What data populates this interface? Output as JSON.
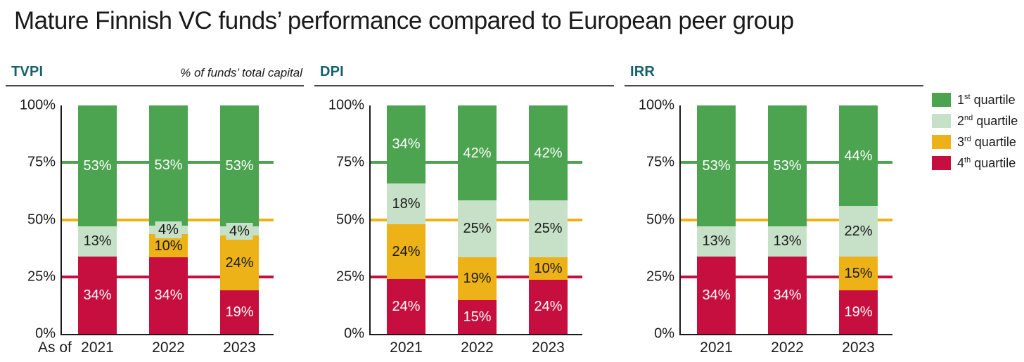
{
  "title": "Mature Finnish VC funds’ performance compared to European peer group",
  "colors": {
    "quartile1_green": "#4CA450",
    "quartile2_light_green": "#C6E1C7",
    "quartile3_yellow": "#EDB217",
    "quartile4_red": "#C60F3E",
    "section_header_teal": "#15616D",
    "axis": "#1a1a1a",
    "header_rule": "#4a4a4a"
  },
  "legend": {
    "items": [
      {
        "ordinal": "1",
        "suffix": "st",
        "label": "quartile",
        "color": "#4CA450"
      },
      {
        "ordinal": "2",
        "suffix": "nd",
        "label": "quartile",
        "color": "#C6E1C7"
      },
      {
        "ordinal": "3",
        "suffix": "rd",
        "label": "quartile",
        "color": "#EDB217"
      },
      {
        "ordinal": "4",
        "suffix": "th",
        "label": "quartile",
        "color": "#C60F3E"
      }
    ]
  },
  "chart_data": [
    {
      "id": "tvpi",
      "type": "bar",
      "stacked": true,
      "title": "TVPI",
      "note": "% of funds’ total capital",
      "x_prefix": "As of",
      "categories": [
        "2021",
        "2022",
        "2023"
      ],
      "ylim": [
        0,
        100
      ],
      "yticks": [
        0,
        25,
        50,
        75,
        100
      ],
      "grid": "reference lines only",
      "legend_position": "figure top right",
      "reference_lines": [
        {
          "value": 25,
          "color": "#C60F3E"
        },
        {
          "value": 50,
          "color": "#EDB217"
        },
        {
          "value": 75,
          "color": "#4CA450"
        }
      ],
      "series": [
        {
          "name": "4th quartile",
          "color": "#C60F3E",
          "label_color": "#FFFFFF",
          "values": [
            34,
            34,
            19
          ]
        },
        {
          "name": "3rd quartile",
          "color": "#EDB217",
          "label_color": "#1A1A1A",
          "values": [
            0,
            10,
            24
          ]
        },
        {
          "name": "2nd quartile",
          "color": "#C6E1C7",
          "label_color": "#1A1A1A",
          "values": [
            13,
            4,
            4
          ]
        },
        {
          "name": "1st quartile",
          "color": "#4CA450",
          "label_color": "#FFFFFF",
          "values": [
            53,
            53,
            53
          ]
        }
      ]
    },
    {
      "id": "dpi",
      "type": "bar",
      "stacked": true,
      "title": "DPI",
      "note": "",
      "x_prefix": "",
      "categories": [
        "2021",
        "2022",
        "2023"
      ],
      "ylim": [
        0,
        100
      ],
      "yticks": [
        0,
        25,
        50,
        75,
        100
      ],
      "grid": "reference lines only",
      "reference_lines": [
        {
          "value": 25,
          "color": "#C60F3E"
        },
        {
          "value": 50,
          "color": "#EDB217"
        },
        {
          "value": 75,
          "color": "#4CA450"
        }
      ],
      "series": [
        {
          "name": "4th quartile",
          "color": "#C60F3E",
          "label_color": "#FFFFFF",
          "values": [
            24,
            15,
            24
          ]
        },
        {
          "name": "3rd quartile",
          "color": "#EDB217",
          "label_color": "#1A1A1A",
          "values": [
            24,
            19,
            10
          ]
        },
        {
          "name": "2nd quartile",
          "color": "#C6E1C7",
          "label_color": "#1A1A1A",
          "values": [
            18,
            25,
            25
          ]
        },
        {
          "name": "1st quartile",
          "color": "#4CA450",
          "label_color": "#FFFFFF",
          "values": [
            34,
            42,
            42
          ]
        }
      ]
    },
    {
      "id": "irr",
      "type": "bar",
      "stacked": true,
      "title": "IRR",
      "note": "",
      "x_prefix": "",
      "categories": [
        "2021",
        "2022",
        "2023"
      ],
      "ylim": [
        0,
        100
      ],
      "yticks": [
        0,
        25,
        50,
        75,
        100
      ],
      "grid": "reference lines only",
      "reference_lines": [
        {
          "value": 25,
          "color": "#C60F3E"
        },
        {
          "value": 50,
          "color": "#EDB217"
        },
        {
          "value": 75,
          "color": "#4CA450"
        }
      ],
      "series": [
        {
          "name": "4th quartile",
          "color": "#C60F3E",
          "label_color": "#FFFFFF",
          "values": [
            34,
            34,
            19
          ]
        },
        {
          "name": "3rd quartile",
          "color": "#EDB217",
          "label_color": "#1A1A1A",
          "values": [
            0,
            0,
            15
          ]
        },
        {
          "name": "2nd quartile",
          "color": "#C6E1C7",
          "label_color": "#1A1A1A",
          "values": [
            13,
            13,
            22
          ]
        },
        {
          "name": "1st quartile",
          "color": "#4CA450",
          "label_color": "#FFFFFF",
          "values": [
            53,
            53,
            44
          ]
        }
      ]
    }
  ]
}
